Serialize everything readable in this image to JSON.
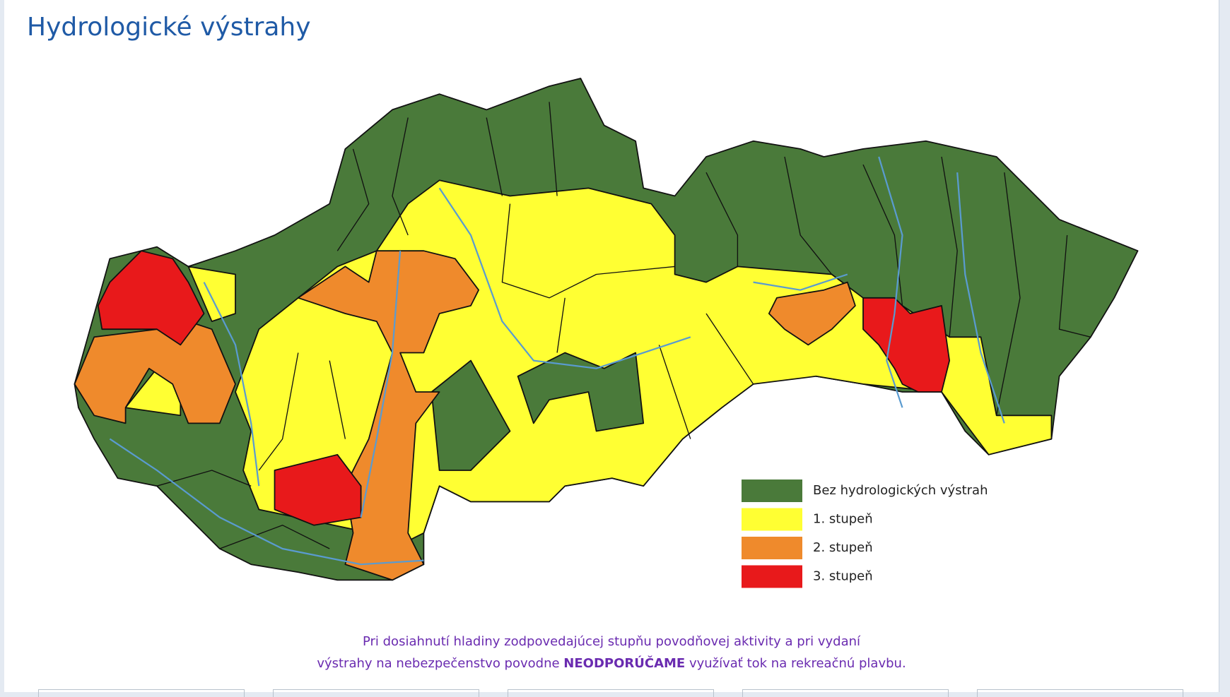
{
  "header": {
    "title": "Hydrologické výstrahy"
  },
  "legend": [
    {
      "label": "Bez hydrologických výstrah",
      "color": "#4a7a3a"
    },
    {
      "label": "1. stupeň",
      "color": "#ffff33"
    },
    {
      "label": "2. stupeň",
      "color": "#ef8a2c"
    },
    {
      "label": "3. stupeň",
      "color": "#e8191b"
    }
  ],
  "notice": {
    "line1": "Pri dosiahnutí hladiny zodpovedajúcej stupňu povodňovej aktivity a pri vydaní",
    "line2_start": "výstrahy na nebezpečenstvo povodne ",
    "line2_bold": "NEODPORÚČAME",
    "line2_end": " využívať tok na rekreačnú plavbu."
  }
}
